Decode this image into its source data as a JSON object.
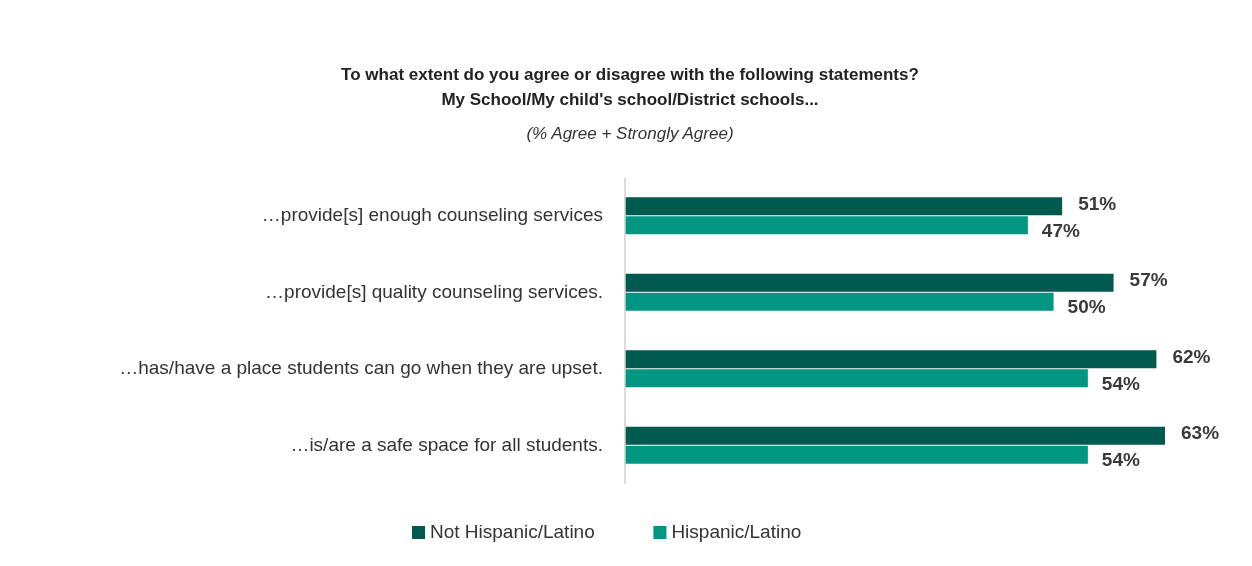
{
  "chart_data": {
    "type": "bar",
    "orientation": "horizontal",
    "title": "To what extent do you agree or disagree with the following statements?\nMy School/My child's school/District schools...",
    "subtitle": "(% Agree + Strongly Agree)",
    "categories": [
      "…provide[s] enough counseling services",
      "…provide[s] quality counseling services.",
      "…has/have a place students can go when they are upset.",
      "…is/are a safe space for all students."
    ],
    "series": [
      {
        "name": "Not Hispanic/Latino",
        "color": "#005a4e",
        "values": [
          51,
          57,
          62,
          63
        ],
        "value_labels": [
          "51%",
          "57%",
          "62%",
          "63%"
        ]
      },
      {
        "name": "Hispanic/Latino",
        "color": "#009682",
        "values": [
          47,
          50,
          54,
          54
        ],
        "value_labels": [
          "47%",
          "50%",
          "54%",
          "54%"
        ]
      }
    ],
    "legend": "bottom"
  }
}
